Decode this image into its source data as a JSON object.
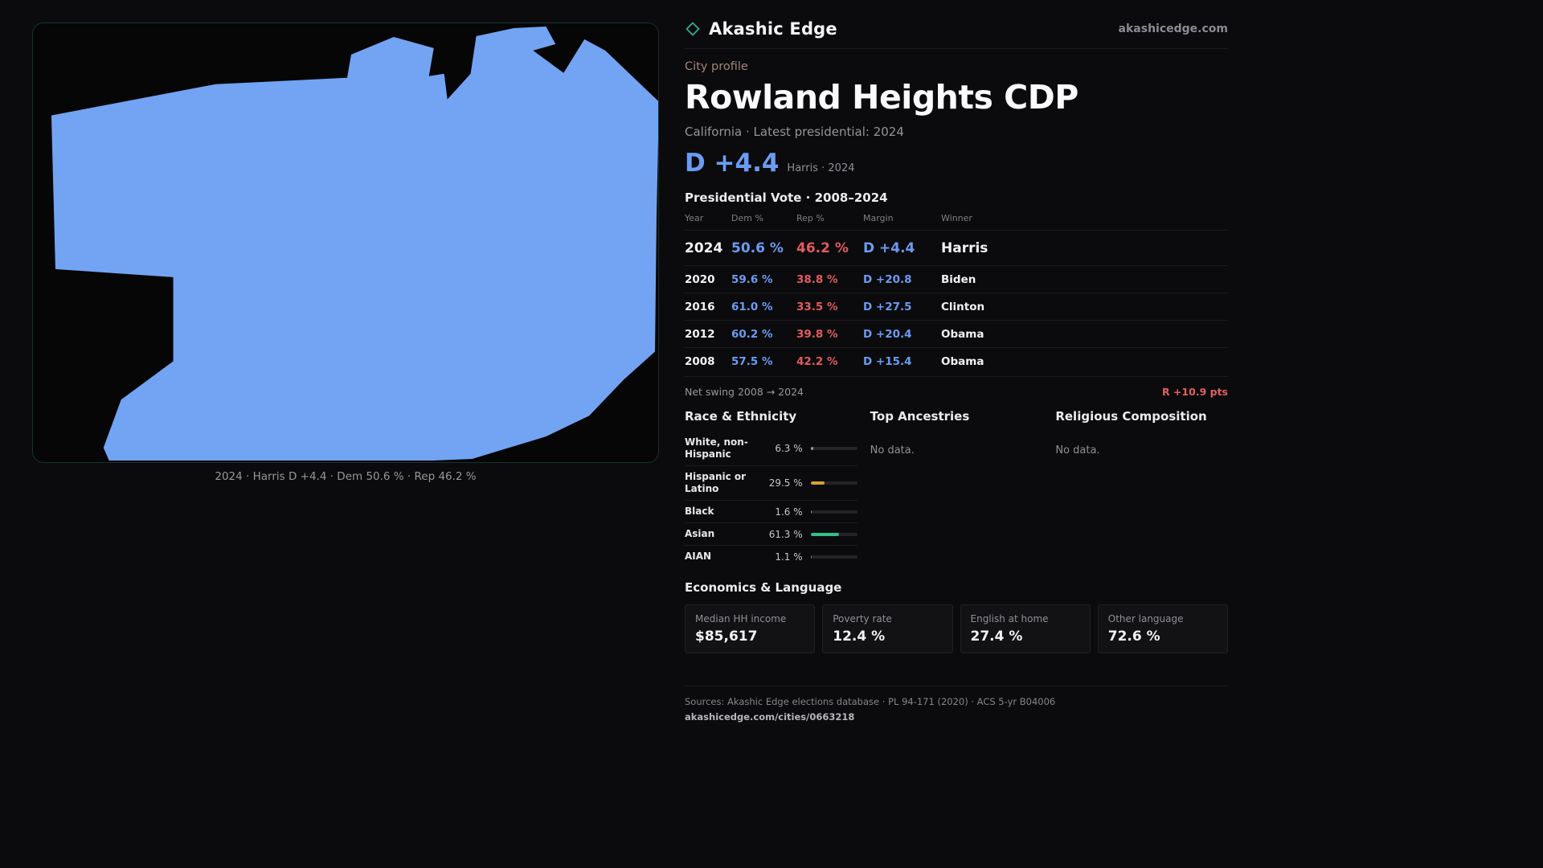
{
  "colors": {
    "page_bg": "#0b0b0d",
    "map_fill": "#72a4f3",
    "dem_blue": "#6b9cf3",
    "rep_red": "#e05c5f",
    "swing_red": "#e06060",
    "accent_teal": "#35a893"
  },
  "brand": {
    "name": "Akashic Edge",
    "domain": "akashicedge.com",
    "logo_icon": "diamond-icon"
  },
  "header": {
    "kicker": "City profile",
    "title": "Rowland Heights CDP",
    "subtitle": "California · Latest presidential: 2024"
  },
  "headline": {
    "margin": "D +4.4",
    "note": "Harris · 2024"
  },
  "map": {
    "caption": "2024 · Harris D +4.4 · Dem 50.6 % · Rep 46.2 %"
  },
  "vote_table": {
    "title": "Presidential Vote · 2008–2024",
    "columns": {
      "year": "Year",
      "dem": "Dem %",
      "rep": "Rep %",
      "margin": "Margin",
      "winner": "Winner"
    },
    "rows": [
      {
        "year": "2024",
        "dem": "50.6 %",
        "rep": "46.2 %",
        "margin": "D +4.4",
        "winner": "Harris"
      },
      {
        "year": "2020",
        "dem": "59.6 %",
        "rep": "38.8 %",
        "margin": "D +20.8",
        "winner": "Biden"
      },
      {
        "year": "2016",
        "dem": "61.0 %",
        "rep": "33.5 %",
        "margin": "D +27.5",
        "winner": "Clinton"
      },
      {
        "year": "2012",
        "dem": "60.2 %",
        "rep": "39.8 %",
        "margin": "D +20.4",
        "winner": "Obama"
      },
      {
        "year": "2008",
        "dem": "57.5 %",
        "rep": "42.2 %",
        "margin": "D +15.4",
        "winner": "Obama"
      }
    ],
    "net_swing_label": "Net swing 2008 → 2024",
    "net_swing_value": "R +10.9 pts"
  },
  "demographics": {
    "race": {
      "title": "Race & Ethnicity",
      "rows": [
        {
          "label": "White, non-Hispanic",
          "value": "6.3 %",
          "pct": 6.3,
          "color": "#9aa0a6"
        },
        {
          "label": "Hispanic or Latino",
          "value": "29.5 %",
          "pct": 29.5,
          "color": "#d9a231"
        },
        {
          "label": "Black",
          "value": "1.6 %",
          "pct": 1.6,
          "color": "#9aa0a6"
        },
        {
          "label": "Asian",
          "value": "61.3 %",
          "pct": 61.3,
          "color": "#35bd86"
        },
        {
          "label": "AIAN",
          "value": "1.1 %",
          "pct": 1.1,
          "color": "#d96a4a"
        }
      ]
    },
    "ancestries": {
      "title": "Top Ancestries",
      "empty": "No data."
    },
    "religion": {
      "title": "Religious Composition",
      "empty": "No data."
    }
  },
  "economics": {
    "title": "Economics & Language",
    "stats": [
      {
        "label": "Median HH income",
        "value": "$85,617"
      },
      {
        "label": "Poverty rate",
        "value": "12.4 %"
      },
      {
        "label": "English at home",
        "value": "27.4 %"
      },
      {
        "label": "Other language",
        "value": "72.6 %"
      }
    ]
  },
  "footer": {
    "sources": "Sources: Akashic Edge elections database · PL 94-171 (2020) · ACS 5-yr B04006",
    "permalink": "akashicedge.com/cities/0663218"
  }
}
